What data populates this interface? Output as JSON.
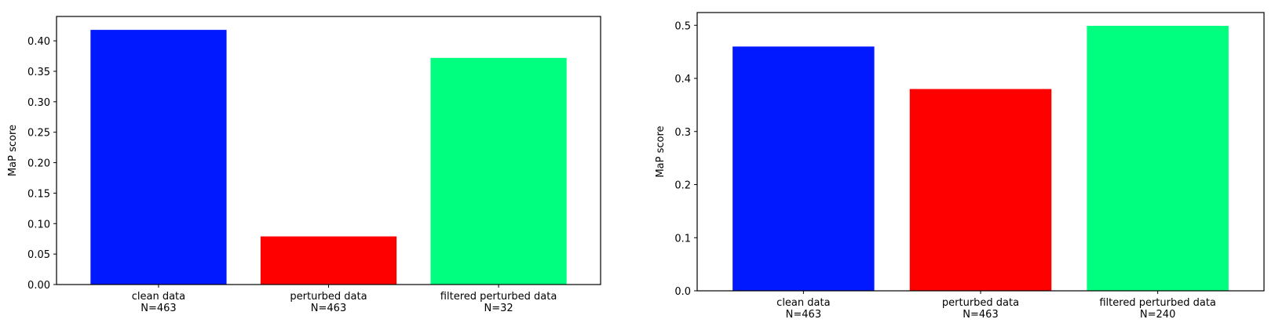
{
  "chart_data": [
    {
      "type": "bar",
      "categories": [
        "clean data\nN=463",
        "perturbed data\nN=463",
        "filtered perturbed data\nN=32"
      ],
      "values": [
        0.418,
        0.079,
        0.372
      ],
      "colors": [
        "#0019ff",
        "#ff0000",
        "#00ff7f"
      ],
      "title": "",
      "xlabel": "",
      "ylabel": "MaP score",
      "ylim": [
        0,
        0.44
      ],
      "yticks": [
        0.0,
        0.05,
        0.1,
        0.15,
        0.2,
        0.25,
        0.3,
        0.35,
        0.4
      ],
      "ytick_labels": [
        "0.00",
        "0.05",
        "0.10",
        "0.15",
        "0.20",
        "0.25",
        "0.30",
        "0.35",
        "0.40"
      ],
      "grid": false,
      "legend": "none"
    },
    {
      "type": "bar",
      "categories": [
        "clean data\nN=463",
        "perturbed data\nN=463",
        "filtered perturbed data\nN=240"
      ],
      "values": [
        0.46,
        0.38,
        0.499
      ],
      "colors": [
        "#0019ff",
        "#ff0000",
        "#00ff7f"
      ],
      "title": "",
      "xlabel": "",
      "ylabel": "MaP score",
      "ylim": [
        0,
        0.524
      ],
      "yticks": [
        0.0,
        0.1,
        0.2,
        0.3,
        0.4,
        0.5
      ],
      "ytick_labels": [
        "0.0",
        "0.1",
        "0.2",
        "0.3",
        "0.4",
        "0.5"
      ],
      "grid": false,
      "legend": "none"
    }
  ]
}
